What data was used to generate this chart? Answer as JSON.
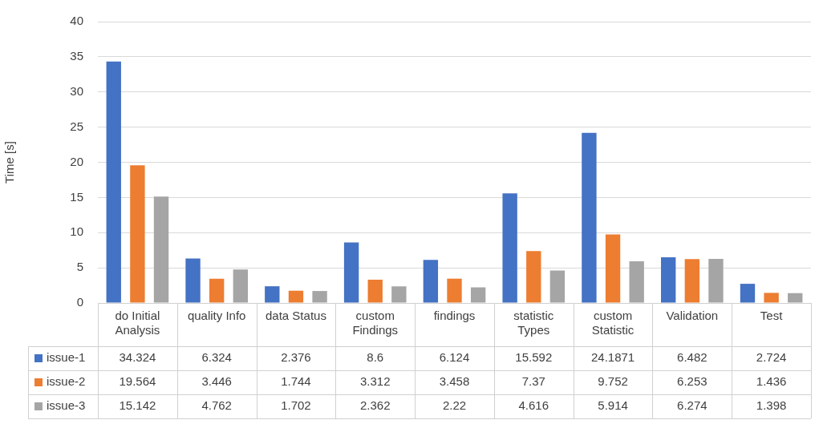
{
  "chart_data": {
    "type": "bar",
    "ylabel": "Time [s]",
    "categories": [
      "do Initial Analysis",
      "quality Info",
      "data Status",
      "custom Findings",
      "findings",
      "statistic Types",
      "custom Statistic",
      "Validation",
      "Test"
    ],
    "series": [
      {
        "name": "issue-1",
        "color": "#4472c4",
        "values": [
          34.324,
          6.324,
          2.376,
          8.6,
          6.124,
          15.592,
          24.1871,
          6.482,
          2.724
        ]
      },
      {
        "name": "issue-2",
        "color": "#ed7d31",
        "values": [
          19.564,
          3.446,
          1.744,
          3.312,
          3.458,
          7.37,
          9.752,
          6.253,
          1.436
        ]
      },
      {
        "name": "issue-3",
        "color": "#a5a5a5",
        "values": [
          15.142,
          4.762,
          1.702,
          2.362,
          2.22,
          4.616,
          5.914,
          6.274,
          1.398
        ]
      }
    ],
    "ylim": [
      0,
      40
    ],
    "yticks": [
      0,
      5,
      10,
      15,
      20,
      25,
      30,
      35,
      40
    ],
    "grid": "y",
    "legend": "bottom",
    "data_labels": true
  }
}
